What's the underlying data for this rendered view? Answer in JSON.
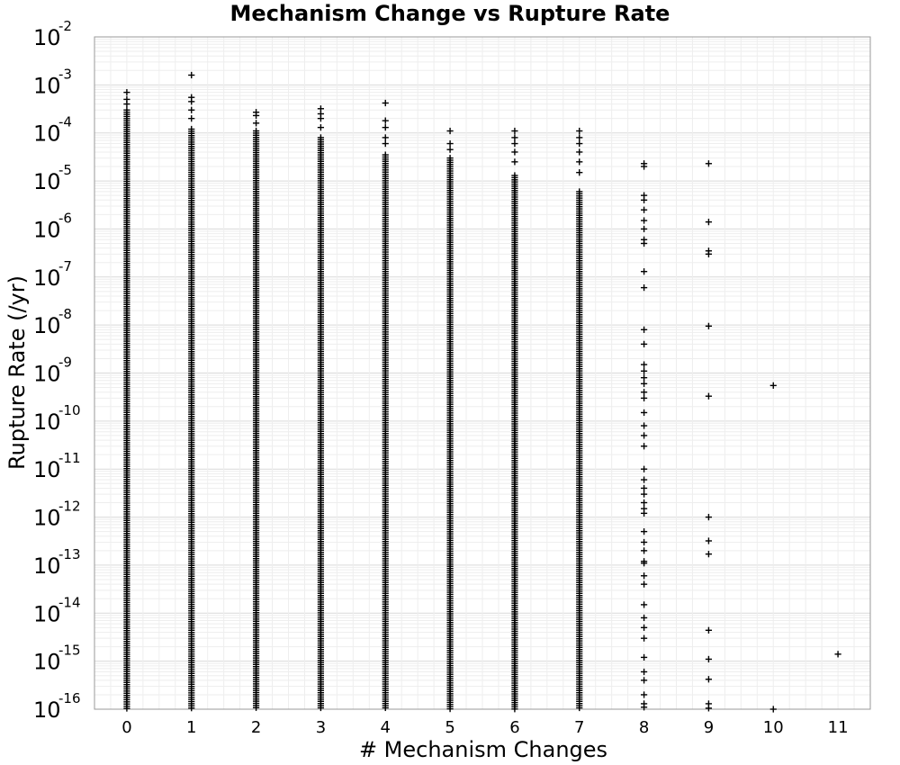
{
  "chart_data": {
    "type": "scatter",
    "title": "Mechanism Change vs Rupture Rate",
    "xlabel": "# Mechanism Changes",
    "ylabel": "Rupture Rate (/yr)",
    "x_ticks": [
      "0",
      "1",
      "2",
      "3",
      "4",
      "5",
      "6",
      "7",
      "8",
      "9",
      "10",
      "11"
    ],
    "y_tick_base": "10",
    "y_tick_exponents": [
      "-2",
      "-3",
      "-4",
      "-5",
      "-6",
      "-7",
      "-8",
      "-9",
      "-10",
      "-11",
      "-12",
      "-13",
      "-14",
      "-15",
      "-16"
    ],
    "xlim": [
      -0.5,
      11.5
    ],
    "ylim": [
      1e-16,
      0.01
    ],
    "y_scale": "log",
    "grid": true,
    "marker": "+",
    "marker_color": "#000000",
    "series": [
      {
        "columns": [
          {
            "x": 0,
            "dense_range": [
              1e-16,
              0.0003
            ],
            "points": [
              0.0007,
              0.0005,
              0.0004
            ]
          },
          {
            "x": 1,
            "dense_range": [
              1e-16,
              0.00012
            ],
            "points": [
              0.0016,
              0.00055,
              0.00045,
              0.0003,
              0.0002
            ]
          },
          {
            "x": 2,
            "dense_range": [
              1e-16,
              0.00011
            ],
            "points": [
              0.00027,
              0.00023,
              0.00016
            ]
          },
          {
            "x": 3,
            "dense_range": [
              1e-16,
              8e-05
            ],
            "points": [
              0.00032,
              0.00025,
              0.0002,
              0.00013
            ]
          },
          {
            "x": 4,
            "dense_range": [
              1e-16,
              3.5e-05
            ],
            "points": [
              0.00042,
              0.00018,
              0.00013,
              8e-05,
              6e-05
            ]
          },
          {
            "x": 5,
            "dense_range": [
              1e-16,
              3e-05
            ],
            "points": [
              0.00011,
              6e-05,
              4.5e-05
            ]
          },
          {
            "x": 6,
            "dense_range": [
              1e-16,
              1.3e-05
            ],
            "points": [
              0.00011,
              8e-05,
              6e-05,
              4e-05,
              2.5e-05
            ]
          },
          {
            "x": 7,
            "dense_range": [
              1e-16,
              6e-06
            ],
            "points": [
              0.00011,
              8e-05,
              6e-05,
              4e-05,
              2.5e-05,
              1.5e-05
            ]
          },
          {
            "x": 8,
            "dense_range": null,
            "points": [
              2.3e-05,
              2e-05,
              5e-06,
              4e-06,
              2.5e-06,
              1.5e-06,
              1e-06,
              6e-07,
              5e-07,
              1.3e-07,
              6e-08,
              8e-09,
              4e-09,
              1.5e-09,
              1.1e-09,
              8e-10,
              6e-10,
              4e-10,
              3e-10,
              1.5e-10,
              8e-11,
              5e-11,
              3e-11,
              1e-11,
              6e-12,
              4e-12,
              3e-12,
              2e-12,
              1.5e-12,
              1.2e-12,
              5e-13,
              3e-13,
              2e-13,
              1.2e-13,
              1.1e-13,
              6e-14,
              4e-14,
              1.5e-14,
              8e-15,
              5e-15,
              3e-15,
              1.2e-15,
              6e-16,
              4e-16,
              2e-16,
              1.3e-16,
              1.1e-16
            ]
          },
          {
            "x": 9,
            "dense_range": null,
            "points": [
              2.3e-05,
              1.4e-06,
              3.5e-07,
              3e-07,
              9.5e-09,
              3.3e-10,
              1e-12,
              3.2e-13,
              1.7e-13,
              4.4e-15,
              1.1e-15,
              4.2e-16,
              1.3e-16,
              1.05e-16
            ]
          },
          {
            "x": 10,
            "dense_range": null,
            "points": [
              5.5e-10,
              1e-16
            ]
          },
          {
            "x": 11,
            "dense_range": null,
            "points": [
              1.4e-15
            ]
          }
        ]
      }
    ]
  }
}
